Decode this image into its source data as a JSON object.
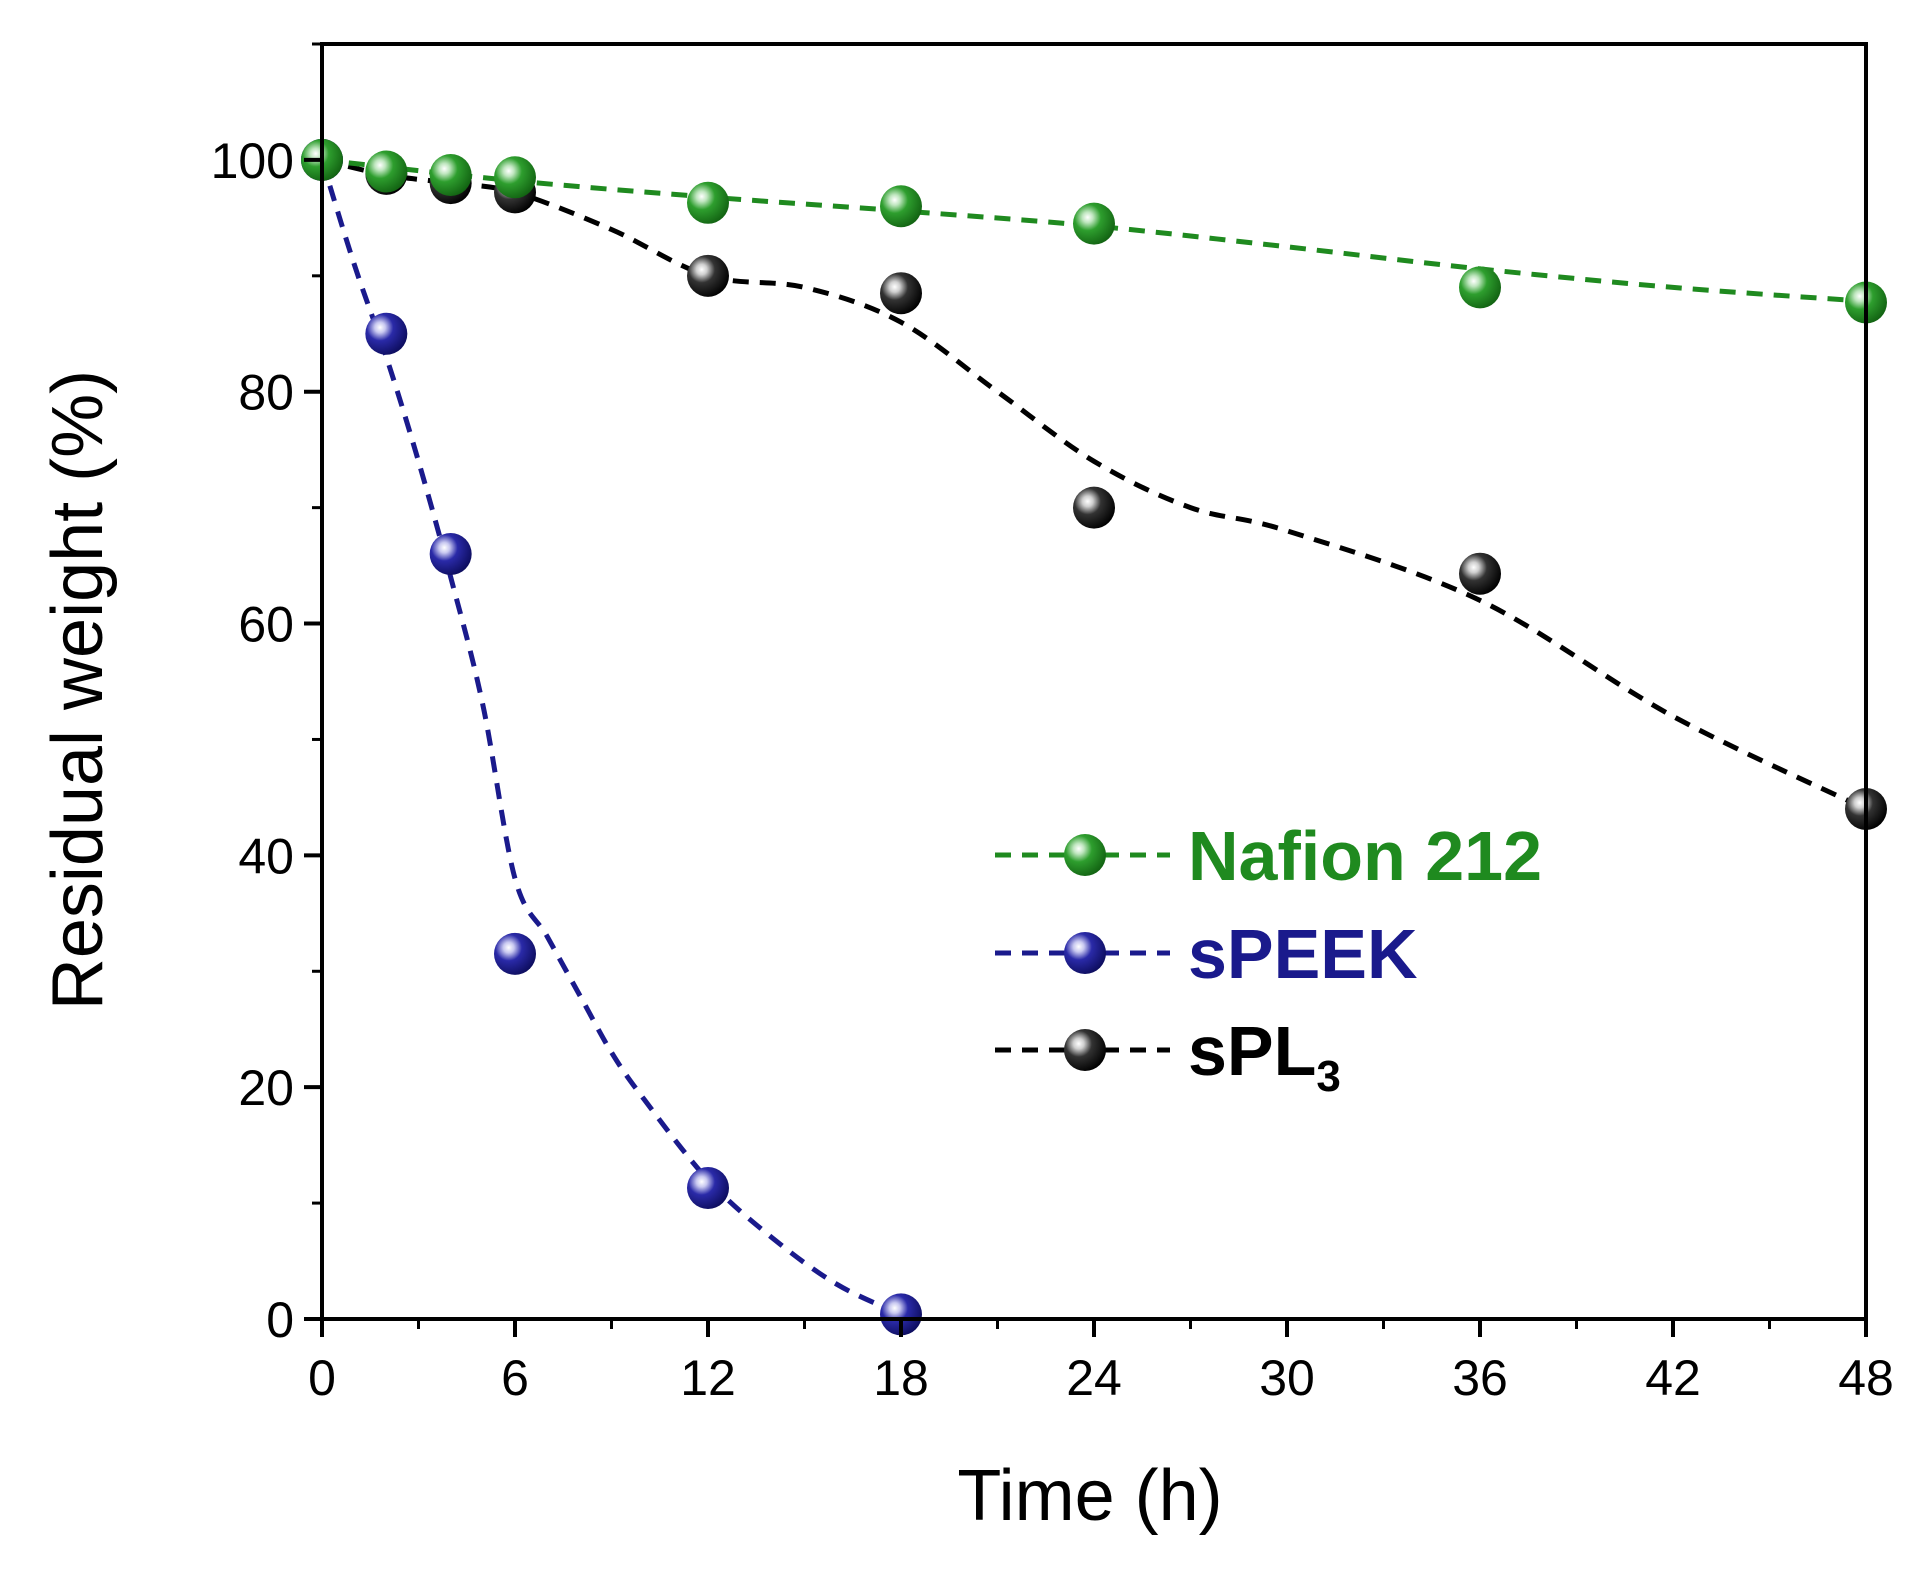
{
  "chart_data": {
    "type": "scatter",
    "xlabel": "Time (h)",
    "ylabel": "Residual weight (%)",
    "xlim": [
      0,
      48
    ],
    "ylim": [
      0,
      110
    ],
    "xticks": [
      0,
      6,
      12,
      18,
      24,
      30,
      36,
      42,
      48
    ],
    "xtick_labels": [
      "0",
      "6",
      "12",
      "18",
      "24",
      "30",
      "36",
      "42",
      "48"
    ],
    "yticks": [
      0,
      20,
      40,
      60,
      80,
      100
    ],
    "ytick_labels": [
      "0",
      "20",
      "40",
      "60",
      "80",
      "100"
    ],
    "grid": false,
    "legend_position": "center-right",
    "series": [
      {
        "name": "Nafion 212",
        "color": "#1f8a1f",
        "x": [
          0,
          2,
          4,
          6,
          12,
          18,
          24,
          36,
          48
        ],
        "y": [
          100,
          99,
          98.7,
          98.5,
          96.3,
          96,
          94.5,
          89,
          87.7
        ],
        "fit_x": [
          0,
          6,
          12,
          18,
          24,
          30,
          36,
          42,
          48
        ],
        "fit_y": [
          100,
          98.2,
          96.8,
          95.6,
          94.3,
          92.5,
          90.6,
          89,
          87.8
        ]
      },
      {
        "name": "sPEEK",
        "color": "#1a1a8c",
        "x": [
          0,
          2,
          4,
          6,
          12,
          18
        ],
        "y": [
          100,
          85,
          66,
          31.5,
          11.3,
          0.4
        ],
        "fit_x": [
          0,
          1,
          2,
          3,
          4,
          5,
          6,
          7,
          8,
          9,
          10,
          12,
          14,
          16,
          18
        ],
        "fit_y": [
          100,
          91,
          83,
          74,
          64,
          53,
          38,
          33,
          28,
          23,
          19,
          12,
          7,
          3,
          0.4
        ]
      },
      {
        "name": "sPL",
        "name_subscript": "3",
        "color": "#000000",
        "x": [
          0,
          2,
          4,
          6,
          12,
          18,
          24,
          36,
          48
        ],
        "y": [
          100,
          98.8,
          98,
          97.2,
          90,
          88.5,
          70,
          64.3,
          44
        ],
        "fit_x": [
          0,
          2,
          4,
          6,
          9,
          12,
          15,
          18,
          21,
          24,
          27,
          30,
          36,
          42,
          48
        ],
        "fit_y": [
          100,
          98.7,
          98,
          97.2,
          94,
          90,
          89,
          86,
          80,
          74,
          70,
          68,
          62,
          52,
          44
        ]
      }
    ]
  }
}
